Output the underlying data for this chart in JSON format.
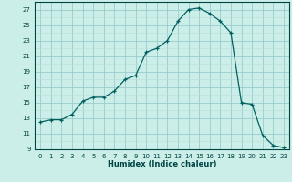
{
  "x": [
    0,
    1,
    2,
    3,
    4,
    5,
    6,
    7,
    8,
    9,
    10,
    11,
    12,
    13,
    14,
    15,
    16,
    17,
    18,
    19,
    20,
    21,
    22,
    23
  ],
  "y": [
    12.5,
    12.8,
    12.8,
    13.5,
    15.2,
    15.7,
    15.7,
    16.5,
    18.0,
    18.5,
    21.5,
    22.0,
    23.0,
    25.5,
    27.0,
    27.2,
    26.5,
    25.5,
    24.0,
    15.0,
    14.8,
    10.8,
    9.5,
    9.2
  ],
  "line_color": "#006060",
  "marker": "+",
  "bg_color": "#cceee8",
  "grid_major_color": "#99cccc",
  "grid_minor_color": "#bbdddd",
  "xlabel": "Humidex (Indice chaleur)",
  "xlim": [
    -0.5,
    23.5
  ],
  "ylim": [
    9,
    28
  ],
  "yticks": [
    9,
    11,
    13,
    15,
    17,
    19,
    21,
    23,
    25,
    27
  ],
  "xticks": [
    0,
    1,
    2,
    3,
    4,
    5,
    6,
    7,
    8,
    9,
    10,
    11,
    12,
    13,
    14,
    15,
    16,
    17,
    18,
    19,
    20,
    21,
    22,
    23
  ],
  "font_color": "#004444",
  "spine_color": "#004444",
  "tick_fontsize": 5.0,
  "xlabel_fontsize": 6.0,
  "linewidth": 0.9,
  "markersize": 3.5,
  "markeredgewidth": 0.9
}
